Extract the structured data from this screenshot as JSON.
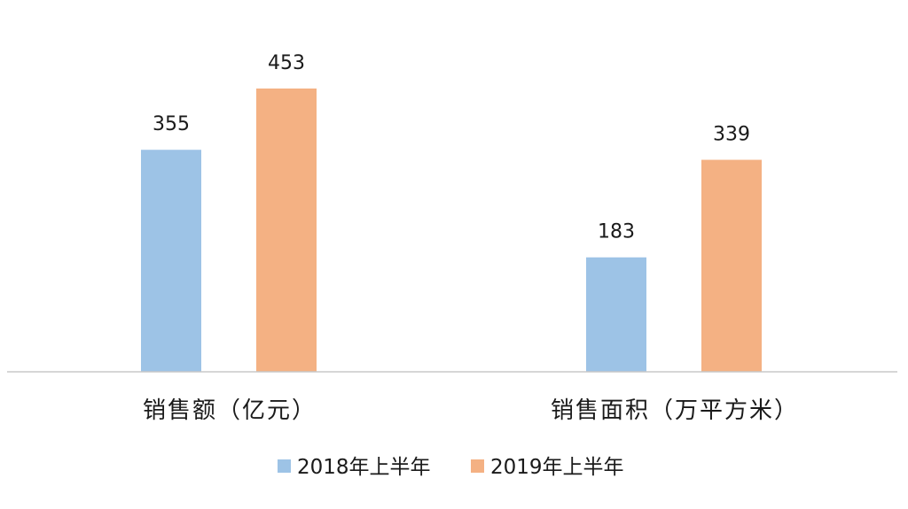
{
  "chart_data": {
    "type": "bar",
    "categories": [
      "销售额（亿元）",
      "销售面积（万平方米）"
    ],
    "series": [
      {
        "name": "2018年上半年",
        "values": [
          355,
          183
        ],
        "color": "#9DC3E6"
      },
      {
        "name": "2019年上半年",
        "values": [
          453,
          339
        ],
        "color": "#F4B183"
      }
    ],
    "ylim": [
      0,
      500
    ],
    "grid": false,
    "legend": "bottom",
    "data_labels": true
  }
}
